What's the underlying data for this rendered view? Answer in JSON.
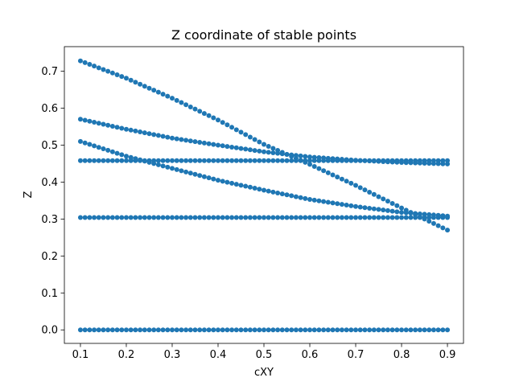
{
  "chart_data": {
    "type": "scatter",
    "title": "Z coordinate of stable points",
    "xlabel": "cXY",
    "ylabel": "Z",
    "xlim": [
      0.065,
      0.935
    ],
    "ylim": [
      -0.0365,
      0.7665
    ],
    "xticks": [
      0.1,
      0.2,
      0.3,
      0.4,
      0.5,
      0.6,
      0.7,
      0.8,
      0.9
    ],
    "xtick_labels": [
      "0.1",
      "0.2",
      "0.3",
      "0.4",
      "0.5",
      "0.6",
      "0.7",
      "0.8",
      "0.9"
    ],
    "yticks": [
      0.0,
      0.1,
      0.2,
      0.3,
      0.4,
      0.5,
      0.6,
      0.7
    ],
    "ytick_labels": [
      "0.0",
      "0.1",
      "0.2",
      "0.3",
      "0.4",
      "0.5",
      "0.6",
      "0.7"
    ],
    "grid": false,
    "marker_color": "#1f77b4",
    "x": {
      "start": 0.1,
      "end": 0.9,
      "count": 81
    },
    "series": [
      {
        "z_at": [
          [
            0.1,
            0.0
          ],
          [
            0.9,
            0.0
          ]
        ]
      },
      {
        "z_at": [
          [
            0.1,
            0.304
          ],
          [
            0.9,
            0.304
          ]
        ]
      },
      {
        "z_at": [
          [
            0.1,
            0.458
          ],
          [
            0.9,
            0.458
          ]
        ]
      },
      {
        "z_at": [
          [
            0.1,
            0.728
          ],
          [
            0.2,
            0.681
          ],
          [
            0.3,
            0.627
          ],
          [
            0.4,
            0.568
          ],
          [
            0.5,
            0.502
          ],
          [
            0.6,
            0.448
          ],
          [
            0.7,
            0.391
          ],
          [
            0.8,
            0.33
          ],
          [
            0.9,
            0.27
          ]
        ]
      },
      {
        "z_at": [
          [
            0.1,
            0.57
          ],
          [
            0.2,
            0.543
          ],
          [
            0.3,
            0.519
          ],
          [
            0.4,
            0.5
          ],
          [
            0.5,
            0.482
          ],
          [
            0.6,
            0.468
          ],
          [
            0.7,
            0.459
          ],
          [
            0.8,
            0.453
          ],
          [
            0.9,
            0.449
          ]
        ]
      },
      {
        "z_at": [
          [
            0.1,
            0.51
          ],
          [
            0.2,
            0.47
          ],
          [
            0.3,
            0.437
          ],
          [
            0.4,
            0.405
          ],
          [
            0.5,
            0.378
          ],
          [
            0.6,
            0.353
          ],
          [
            0.7,
            0.334
          ],
          [
            0.8,
            0.318
          ],
          [
            0.9,
            0.308
          ]
        ]
      }
    ]
  }
}
